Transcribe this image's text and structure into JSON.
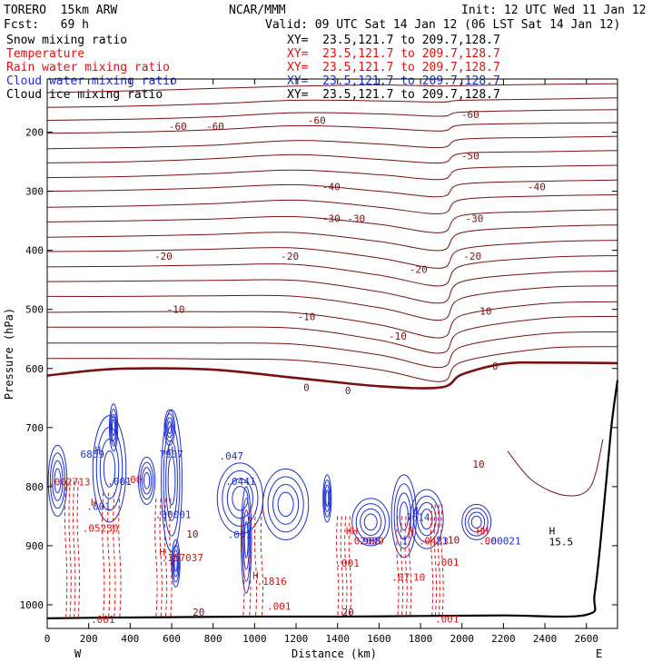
{
  "header": {
    "model": "TORERO  15km ARW",
    "center": "NCAR/MMM",
    "init": "Init: 12 UTC Wed 11 Jan 12",
    "fcst": "Fcst:   69 h",
    "valid": "Valid: 09 UTC Sat 14 Jan 12 (06 LST Sat 14 Jan 12)"
  },
  "legend": [
    {
      "label": "Snow mixing ratio",
      "xy": "XY=  23.5,121.7 to 209.7,128.7",
      "color": "#000000"
    },
    {
      "label": "Temperature",
      "xy": "XY=  23.5,121.7 to 209.7,128.7",
      "color": "#e01010"
    },
    {
      "label": "Rain water mixing ratio",
      "xy": "XY=  23.5,121.7 to 209.7,128.7",
      "color": "#e01010"
    },
    {
      "label": "Cloud water mixing ratio",
      "xy": "XY=  23.5,121.7 to 209.7,128.7",
      "color": "#1c2fd0"
    },
    {
      "label": "Cloud ice mixing ratio",
      "xy": "XY=  23.5,121.7 to 209.7,128.7",
      "color": "#000000"
    }
  ],
  "colors": {
    "temperature": "#7a1010",
    "rain": "#e01010",
    "cloud": "#1c2fd0",
    "terrain": "#000000"
  },
  "chart_data": {
    "type": "cross-section",
    "xlabel": "Distance (km)",
    "ylabel": "Pressure (hPa)",
    "xlim": [
      0,
      2750
    ],
    "ylim": [
      1040,
      110
    ],
    "xticks": [
      0,
      200,
      400,
      600,
      800,
      1000,
      1200,
      1400,
      1600,
      1800,
      2000,
      2200,
      2400,
      2600
    ],
    "yticks": [
      200,
      300,
      400,
      500,
      600,
      700,
      800,
      900,
      1000
    ],
    "x_end_labels": {
      "left": "W",
      "right": "E"
    },
    "isotherms": [
      {
        "x": [
          0,
          400,
          800,
          1200,
          1600,
          1900,
          2000,
          2400,
          2750
        ],
        "p": [
          133,
          130,
          126,
          122,
          120,
          122,
          121,
          119,
          118
        ]
      },
      {
        "x": [
          0,
          400,
          800,
          1200,
          1600,
          1900,
          2000,
          2400,
          2750
        ],
        "p": [
          158,
          156,
          152,
          146,
          147,
          149,
          146,
          144,
          142
        ]
      },
      {
        "x": [
          0,
          400,
          800,
          1200,
          1600,
          1900,
          2000,
          2400,
          2750
        ],
        "p": [
          180,
          178,
          174,
          167,
          169,
          173,
          166,
          163,
          162
        ]
      },
      {
        "x": [
          0,
          400,
          800,
          1200,
          1600,
          1900,
          2000,
          2400,
          2750
        ],
        "p": [
          202,
          200,
          196,
          189,
          193,
          198,
          188,
          185,
          184
        ]
      },
      {
        "x": [
          0,
          400,
          800,
          1200,
          1600,
          1900,
          2000,
          2400,
          2750
        ],
        "p": [
          228,
          226,
          222,
          214,
          220,
          226,
          212,
          209,
          207
        ]
      },
      {
        "x": [
          0,
          400,
          800,
          1200,
          1600,
          1900,
          2000,
          2400,
          2750
        ],
        "p": [
          252,
          250,
          245,
          238,
          246,
          252,
          236,
          233,
          231
        ]
      },
      {
        "x": [
          0,
          400,
          800,
          1200,
          1600,
          1900,
          2000,
          2400,
          2750
        ],
        "p": [
          277,
          275,
          270,
          264,
          272,
          280,
          262,
          258,
          256
        ]
      },
      {
        "x": [
          0,
          400,
          800,
          1200,
          1600,
          1900,
          2000,
          2400,
          2750
        ],
        "p": [
          300,
          298,
          294,
          289,
          300,
          309,
          288,
          283,
          281
        ]
      },
      {
        "x": [
          0,
          400,
          800,
          1200,
          1600,
          1900,
          2000,
          2400,
          2750
        ],
        "p": [
          327,
          325,
          321,
          315,
          327,
          338,
          314,
          308,
          306
        ]
      },
      {
        "x": [
          0,
          400,
          800,
          1200,
          1600,
          1900,
          2000,
          2400,
          2750
        ],
        "p": [
          352,
          350,
          347,
          343,
          356,
          370,
          341,
          334,
          331
        ]
      },
      {
        "x": [
          0,
          400,
          800,
          1200,
          1600,
          1900,
          2000,
          2400,
          2750
        ],
        "p": [
          378,
          376,
          373,
          370,
          385,
          400,
          370,
          360,
          357
        ]
      },
      {
        "x": [
          0,
          400,
          800,
          1200,
          1600,
          1900,
          2000,
          2400,
          2750
        ],
        "p": [
          402,
          401,
          398,
          396,
          413,
          430,
          398,
          386,
          383
        ]
      },
      {
        "x": [
          0,
          400,
          800,
          1200,
          1600,
          1900,
          2000,
          2400,
          2750
        ],
        "p": [
          428,
          427,
          425,
          424,
          442,
          460,
          426,
          412,
          409
        ]
      },
      {
        "x": [
          0,
          400,
          800,
          1200,
          1600,
          1900,
          2000,
          2400,
          2750
        ],
        "p": [
          453,
          452,
          451,
          451,
          470,
          489,
          453,
          438,
          435
        ]
      },
      {
        "x": [
          0,
          400,
          800,
          1200,
          1600,
          1900,
          2000,
          2400,
          2750
        ],
        "p": [
          478,
          478,
          477,
          478,
          497,
          518,
          481,
          463,
          460
        ]
      },
      {
        "x": [
          0,
          400,
          800,
          1200,
          1600,
          1900,
          2000,
          2400,
          2750
        ],
        "p": [
          505,
          504,
          504,
          506,
          526,
          548,
          510,
          490,
          487
        ]
      },
      {
        "x": [
          0,
          400,
          800,
          1200,
          1600,
          1900,
          2000,
          2400,
          2750
        ],
        "p": [
          530,
          530,
          530,
          532,
          552,
          574,
          537,
          515,
          512
        ]
      },
      {
        "x": [
          0,
          400,
          800,
          1200,
          1600,
          1900,
          2000,
          2400,
          2750
        ],
        "p": [
          557,
          557,
          557,
          559,
          577,
          598,
          563,
          541,
          538
        ]
      },
      {
        "x": [
          0,
          400,
          800,
          1200,
          1600,
          1900,
          2000,
          2400,
          2750
        ],
        "p": [
          583,
          583,
          584,
          586,
          602,
          622,
          589,
          566,
          563
        ]
      },
      {
        "x": [
          0,
          200,
          400,
          800,
          1200,
          1600,
          1900,
          2000,
          2200,
          2400,
          2750
        ],
        "p": [
          612,
          604,
          600,
          602,
          616,
          630,
          632,
          610,
          592,
          590,
          591
        ],
        "bold": true
      }
    ],
    "temperature_labels": [
      {
        "x": 630,
        "p": 190,
        "text": "-60"
      },
      {
        "x": 810,
        "p": 190,
        "text": "-60"
      },
      {
        "x": 1300,
        "p": 180,
        "text": "-60"
      },
      {
        "x": 2040,
        "p": 170,
        "text": "-60"
      },
      {
        "x": 2040,
        "p": 240,
        "text": "-50"
      },
      {
        "x": 1370,
        "p": 292,
        "text": "-40"
      },
      {
        "x": 2360,
        "p": 292,
        "text": "-40"
      },
      {
        "x": 1370,
        "p": 346,
        "text": "-30"
      },
      {
        "x": 1490,
        "p": 346,
        "text": "-30"
      },
      {
        "x": 2060,
        "p": 346,
        "text": "-30"
      },
      {
        "x": 560,
        "p": 410,
        "text": "-20"
      },
      {
        "x": 1170,
        "p": 410,
        "text": "-20"
      },
      {
        "x": 1790,
        "p": 432,
        "text": "-20"
      },
      {
        "x": 2050,
        "p": 410,
        "text": "-20"
      },
      {
        "x": 620,
        "p": 500,
        "text": "-10"
      },
      {
        "x": 1250,
        "p": 512,
        "text": "-10"
      },
      {
        "x": 1690,
        "p": 545,
        "text": "-10"
      },
      {
        "x": 2100,
        "p": 503,
        "text": "-10"
      },
      {
        "x": 1250,
        "p": 632,
        "text": "0"
      },
      {
        "x": 1450,
        "p": 637,
        "text": "0"
      },
      {
        "x": 2160,
        "p": 596,
        "text": "0"
      },
      {
        "x": 2080,
        "p": 762,
        "text": "10"
      },
      {
        "x": 700,
        "p": 880,
        "text": "10"
      },
      {
        "x": 1960,
        "p": 890,
        "text": "10"
      },
      {
        "x": 730,
        "p": 1012,
        "text": "20"
      },
      {
        "x": 1450,
        "p": 1012,
        "text": "20"
      }
    ],
    "cloud_water": [
      {
        "x": 50,
        "p": 790,
        "rx": 45,
        "rp": 60
      },
      {
        "x": 300,
        "p": 770,
        "rx": 80,
        "rp": 90
      },
      {
        "x": 320,
        "p": 700,
        "rx": 20,
        "rp": 40
      },
      {
        "x": 480,
        "p": 790,
        "rx": 40,
        "rp": 40
      },
      {
        "x": 600,
        "p": 790,
        "rx": 50,
        "rp": 120
      },
      {
        "x": 590,
        "p": 700,
        "rx": 25,
        "rp": 30
      },
      {
        "x": 620,
        "p": 930,
        "rx": 20,
        "rp": 40
      },
      {
        "x": 930,
        "p": 820,
        "rx": 110,
        "rp": 60
      },
      {
        "x": 960,
        "p": 890,
        "rx": 25,
        "rp": 90
      },
      {
        "x": 1150,
        "p": 830,
        "rx": 110,
        "rp": 60
      },
      {
        "x": 1350,
        "p": 820,
        "rx": 20,
        "rp": 40
      },
      {
        "x": 1560,
        "p": 860,
        "rx": 90,
        "rp": 40
      },
      {
        "x": 1720,
        "p": 850,
        "rx": 60,
        "rp": 70
      },
      {
        "x": 1830,
        "p": 855,
        "rx": 80,
        "rp": 50
      },
      {
        "x": 2070,
        "p": 860,
        "rx": 70,
        "rp": 30
      }
    ],
    "rain_water": [
      {
        "x": 120,
        "p": 900,
        "w": 60
      },
      {
        "x": 310,
        "p": 920,
        "w": 80
      },
      {
        "x": 560,
        "p": 930,
        "w": 70
      },
      {
        "x": 990,
        "p": 950,
        "w": 90
      },
      {
        "x": 1430,
        "p": 960,
        "w": 60
      },
      {
        "x": 1720,
        "p": 960,
        "w": 60
      },
      {
        "x": 1880,
        "p": 940,
        "w": 50
      }
    ],
    "ten_degree_contour": {
      "x": [
        2220,
        2340,
        2500,
        2620,
        2680
      ],
      "p": [
        740,
        790,
        815,
        800,
        720
      ]
    },
    "rain_labels": [
      {
        "x": 5,
        "p": 792,
        "text": ".002713"
      },
      {
        "x": 370,
        "p": 788,
        "text": ".00"
      },
      {
        "x": 170,
        "p": 870,
        "text": ".05230"
      },
      {
        "x": 550,
        "p": 920,
        "text": ".187037"
      },
      {
        "x": 1010,
        "p": 960,
        "text": ".1816"
      },
      {
        "x": 1060,
        "p": 1002,
        "text": ".001"
      },
      {
        "x": 1390,
        "p": 929,
        "text": ".001"
      },
      {
        "x": 1660,
        "p": 953,
        "text": ".07"
      },
      {
        "x": 1765,
        "p": 953,
        "text": "10"
      },
      {
        "x": 1870,
        "p": 928,
        "text": ".001"
      },
      {
        "x": 1870,
        "p": 1024,
        "text": ".001"
      },
      {
        "x": 210,
        "p": 1025,
        "text": ".001"
      },
      {
        "x": 1450,
        "p": 892,
        "text": ".02099"
      },
      {
        "x": 1790,
        "p": 892,
        "text": ".0433"
      },
      {
        "x": 2080,
        "p": 892,
        "text": ".00"
      }
    ],
    "cloud_labels": [
      {
        "x": 160,
        "p": 745,
        "text": "6859"
      },
      {
        "x": 540,
        "p": 745,
        "text": "7907"
      },
      {
        "x": 830,
        "p": 748,
        "text": ".047"
      },
      {
        "x": 860,
        "p": 791,
        "text": ".0441"
      },
      {
        "x": 290,
        "p": 791,
        "text": ".001"
      },
      {
        "x": 520,
        "p": 847,
        "text": ".00001"
      },
      {
        "x": 190,
        "p": 833,
        "text": ".001"
      },
      {
        "x": 870,
        "p": 881,
        "text": ".001"
      },
      {
        "x": 1520,
        "p": 892,
        "text": "988"
      },
      {
        "x": 1710,
        "p": 892,
        "text": "1"
      },
      {
        "x": 1730,
        "p": 852,
        "text": "7614"
      },
      {
        "x": 2110,
        "p": 892,
        "text": ".00021"
      },
      {
        "x": 1875,
        "p": 892,
        "text": "21"
      }
    ],
    "h_markers": [
      {
        "x": 230,
        "p": 738,
        "text": "H",
        "color": "#1c2fd0"
      },
      {
        "x": 580,
        "p": 738,
        "text": "H",
        "color": "#1c2fd0"
      },
      {
        "x": 210,
        "p": 826,
        "text": "H",
        "color": "#e01010"
      },
      {
        "x": 540,
        "p": 910,
        "text": "H",
        "color": "#e01010"
      },
      {
        "x": 990,
        "p": 950,
        "text": "H",
        "color": "#e01010"
      },
      {
        "x": 1440,
        "p": 875,
        "text": "HH",
        "color": "#e01010"
      },
      {
        "x": 1740,
        "p": 875,
        "text": "H",
        "color": "#e01010"
      },
      {
        "x": 2070,
        "p": 875,
        "text": "HH",
        "color": "#e01010"
      },
      {
        "x": 1760,
        "p": 840,
        "text": "H",
        "color": "#1c2fd0"
      },
      {
        "x": 2420,
        "p": 875,
        "text": "H",
        "color": "#000000"
      },
      {
        "x": 2420,
        "p": 893,
        "text": "15.5",
        "color": "#000000"
      }
    ],
    "terrain": {
      "x": [
        0,
        200,
        600,
        1000,
        1400,
        1800,
        2200,
        2600,
        2640,
        2680,
        2720,
        2750
      ],
      "p": [
        1023,
        1022,
        1021,
        1020,
        1020,
        1019,
        1018,
        1017,
        980,
        850,
        700,
        620
      ]
    }
  }
}
